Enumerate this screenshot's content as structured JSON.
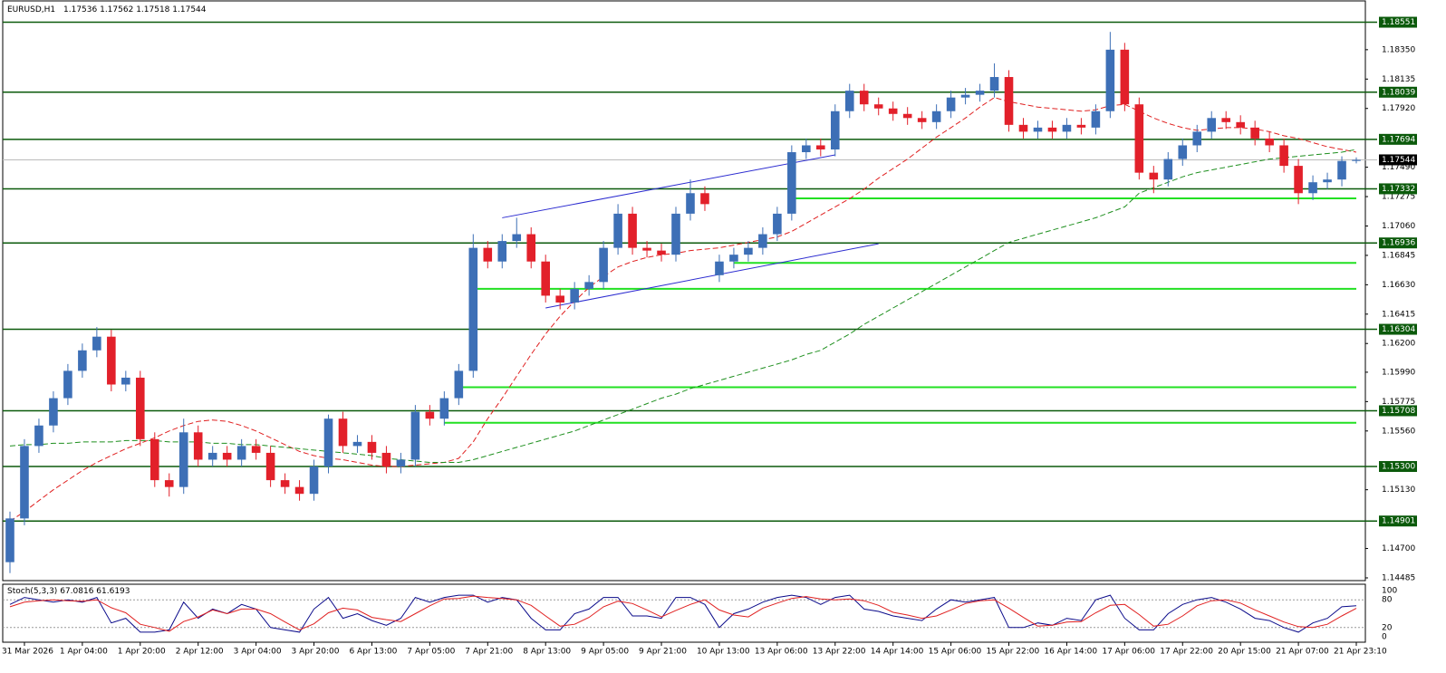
{
  "chart_data": {
    "type": "candlestick",
    "title": "EURUSD,H1",
    "up_color": "#3d6fb6",
    "down_color": "#e2202a",
    "categories": [
      null,
      "31 Mar 2026",
      null,
      null,
      null,
      "1 Apr 04:00",
      null,
      null,
      null,
      "1 Apr 20:00",
      null,
      null,
      null,
      "2 Apr 12:00",
      null,
      null,
      null,
      "3 Apr 04:00",
      null,
      null,
      null,
      "3 Apr 20:00",
      null,
      null,
      null,
      "6 Apr 13:00",
      null,
      null,
      null,
      "7 Apr 05:00",
      null,
      null,
      null,
      "7 Apr 21:00",
      null,
      null,
      null,
      "8 Apr 13:00",
      null,
      null,
      null,
      "9 Apr 05:00",
      null,
      null,
      null,
      "9 Apr 21:00",
      null,
      null,
      null,
      "10 Apr 13:00",
      null,
      null,
      null,
      "13 Apr 06:00",
      null,
      null,
      null,
      "13 Apr 22:00",
      null,
      null,
      null,
      "14 Apr 14:00",
      null,
      null,
      null,
      "15 Apr 06:00",
      null,
      null,
      null,
      "15 Apr 22:00",
      null,
      null,
      null,
      "16 Apr 14:00",
      null,
      null,
      null,
      "17 Apr 06:00",
      null,
      null,
      null,
      "17 Apr 22:00",
      null,
      null,
      null,
      "20 Apr 15:00",
      null,
      null,
      null,
      "21 Apr 07:00",
      null,
      null,
      null,
      "21 Apr 23:10"
    ],
    "candles": [
      [
        1.146,
        1.1497,
        1.1452,
        1.1492
      ],
      [
        1.1492,
        1.155,
        1.1487,
        1.1545
      ],
      [
        1.1545,
        1.1565,
        1.154,
        1.156
      ],
      [
        1.156,
        1.1585,
        1.1555,
        1.158
      ],
      [
        1.158,
        1.1605,
        1.1575,
        1.16
      ],
      [
        1.16,
        1.162,
        1.1595,
        1.1615
      ],
      [
        1.1615,
        1.1632,
        1.161,
        1.1625
      ],
      [
        1.1625,
        1.163,
        1.1585,
        1.159
      ],
      [
        1.159,
        1.16,
        1.1585,
        1.1595
      ],
      [
        1.1595,
        1.16,
        1.1545,
        1.155
      ],
      [
        1.155,
        1.1555,
        1.1515,
        1.152
      ],
      [
        1.152,
        1.1525,
        1.1508,
        1.1515
      ],
      [
        1.1515,
        1.1565,
        1.151,
        1.1555
      ],
      [
        1.1555,
        1.156,
        1.153,
        1.1535
      ],
      [
        1.1535,
        1.1545,
        1.153,
        1.154
      ],
      [
        1.154,
        1.1545,
        1.153,
        1.1535
      ],
      [
        1.1535,
        1.155,
        1.153,
        1.1545
      ],
      [
        1.1545,
        1.155,
        1.1535,
        1.154
      ],
      [
        1.154,
        1.1545,
        1.1515,
        1.152
      ],
      [
        1.152,
        1.1525,
        1.151,
        1.1515
      ],
      [
        1.1515,
        1.152,
        1.1505,
        1.151
      ],
      [
        1.151,
        1.1535,
        1.1505,
        1.153
      ],
      [
        1.153,
        1.1568,
        1.1525,
        1.1565
      ],
      [
        1.1565,
        1.157,
        1.154,
        1.1545
      ],
      [
        1.1545,
        1.1553,
        1.154,
        1.1548
      ],
      [
        1.1548,
        1.1553,
        1.1535,
        1.154
      ],
      [
        1.154,
        1.1545,
        1.1525,
        1.153
      ],
      [
        1.153,
        1.154,
        1.1525,
        1.1535
      ],
      [
        1.1535,
        1.1575,
        1.153,
        1.157
      ],
      [
        1.157,
        1.1575,
        1.156,
        1.1565
      ],
      [
        1.1565,
        1.1585,
        1.156,
        1.158
      ],
      [
        1.158,
        1.1605,
        1.1575,
        1.16
      ],
      [
        1.16,
        1.17,
        1.1595,
        1.169
      ],
      [
        1.169,
        1.1695,
        1.1675,
        1.168
      ],
      [
        1.168,
        1.17,
        1.1675,
        1.1695
      ],
      [
        1.1695,
        1.1712,
        1.169,
        1.17
      ],
      [
        1.17,
        1.1705,
        1.1675,
        1.168
      ],
      [
        1.168,
        1.1685,
        1.165,
        1.1655
      ],
      [
        1.1655,
        1.166,
        1.1645,
        1.165
      ],
      [
        1.165,
        1.1665,
        1.1645,
        1.166
      ],
      [
        1.166,
        1.167,
        1.1655,
        1.1665
      ],
      [
        1.1665,
        1.1695,
        1.166,
        1.169
      ],
      [
        1.169,
        1.1722,
        1.1685,
        1.1715
      ],
      [
        1.1715,
        1.172,
        1.1685,
        1.169
      ],
      [
        1.169,
        1.1695,
        1.1683,
        1.1688
      ],
      [
        1.1688,
        1.1693,
        1.168,
        1.1685
      ],
      [
        1.1685,
        1.172,
        1.168,
        1.1715
      ],
      [
        1.1715,
        1.174,
        1.171,
        1.173
      ],
      [
        1.173,
        1.1735,
        1.1717,
        1.1722
      ],
      [
        1.167,
        1.1685,
        1.1665,
        1.168
      ],
      [
        1.168,
        1.169,
        1.1675,
        1.1685
      ],
      [
        1.1685,
        1.1695,
        1.168,
        1.169
      ],
      [
        1.169,
        1.1705,
        1.1685,
        1.17
      ],
      [
        1.17,
        1.172,
        1.1695,
        1.1715
      ],
      [
        1.1715,
        1.1765,
        1.171,
        1.176
      ],
      [
        1.176,
        1.177,
        1.1755,
        1.1765
      ],
      [
        1.1765,
        1.177,
        1.1757,
        1.1762
      ],
      [
        1.1762,
        1.1795,
        1.1757,
        1.179
      ],
      [
        1.179,
        1.181,
        1.1785,
        1.1805
      ],
      [
        1.1805,
        1.181,
        1.179,
        1.1795
      ],
      [
        1.1795,
        1.18,
        1.1787,
        1.1792
      ],
      [
        1.1792,
        1.1797,
        1.1783,
        1.1788
      ],
      [
        1.1788,
        1.1793,
        1.178,
        1.1785
      ],
      [
        1.1785,
        1.179,
        1.1777,
        1.1782
      ],
      [
        1.1782,
        1.1795,
        1.1777,
        1.179
      ],
      [
        1.179,
        1.1805,
        1.1785,
        1.18
      ],
      [
        1.18,
        1.1807,
        1.1795,
        1.1802
      ],
      [
        1.1802,
        1.181,
        1.1797,
        1.1805
      ],
      [
        1.1805,
        1.1825,
        1.18,
        1.1815
      ],
      [
        1.1815,
        1.182,
        1.1775,
        1.178
      ],
      [
        1.178,
        1.1785,
        1.177,
        1.1775
      ],
      [
        1.1775,
        1.1783,
        1.177,
        1.1778
      ],
      [
        1.1778,
        1.1783,
        1.177,
        1.1775
      ],
      [
        1.1775,
        1.1785,
        1.177,
        1.178
      ],
      [
        1.178,
        1.1785,
        1.1773,
        1.1778
      ],
      [
        1.1778,
        1.1795,
        1.1773,
        1.179
      ],
      [
        1.179,
        1.1848,
        1.1785,
        1.1835
      ],
      [
        1.1835,
        1.184,
        1.179,
        1.1795
      ],
      [
        1.1795,
        1.18,
        1.174,
        1.1745
      ],
      [
        1.1745,
        1.175,
        1.173,
        1.174
      ],
      [
        1.174,
        1.176,
        1.1735,
        1.1755
      ],
      [
        1.1755,
        1.177,
        1.175,
        1.1765
      ],
      [
        1.1765,
        1.178,
        1.176,
        1.1775
      ],
      [
        1.1775,
        1.179,
        1.177,
        1.1785
      ],
      [
        1.1785,
        1.179,
        1.1777,
        1.1782
      ],
      [
        1.1782,
        1.1787,
        1.1773,
        1.1778
      ],
      [
        1.1778,
        1.1783,
        1.1765,
        1.177
      ],
      [
        1.177,
        1.1775,
        1.176,
        1.1765
      ],
      [
        1.1765,
        1.177,
        1.1745,
        1.175
      ],
      [
        1.175,
        1.1755,
        1.1722,
        1.173
      ],
      [
        1.173,
        1.1743,
        1.1725,
        1.1738
      ],
      [
        1.1738,
        1.1745,
        1.1733,
        1.174
      ],
      [
        1.174,
        1.1757,
        1.1735,
        1.17536
      ],
      [
        1.17536,
        1.17562,
        1.17518,
        1.17544
      ]
    ],
    "series": [
      {
        "color": "#e02020",
        "values": [
          1.149,
          1.1497,
          1.1505,
          1.1513,
          1.152,
          1.1527,
          1.1533,
          1.1538,
          1.1543,
          1.1547,
          1.1551,
          1.1556,
          1.156,
          1.1563,
          1.1564,
          1.1563,
          1.156,
          1.1556,
          1.1551,
          1.1546,
          1.1541,
          1.1538,
          1.1536,
          1.1535,
          1.1533,
          1.1531,
          1.153,
          1.153,
          1.1531,
          1.1532,
          1.1533,
          1.1536,
          1.1548,
          1.1565,
          1.158,
          1.1596,
          1.1612,
          1.1627,
          1.164,
          1.1651,
          1.1661,
          1.1669,
          1.1676,
          1.168,
          1.1683,
          1.1685,
          1.1686,
          1.1688,
          1.1689,
          1.169,
          1.1692,
          1.1694,
          1.1696,
          1.1698,
          1.1702,
          1.1708,
          1.1714,
          1.172,
          1.1726,
          1.1733,
          1.1741,
          1.1748,
          1.1755,
          1.1763,
          1.1771,
          1.1778,
          1.1785,
          1.1793,
          1.18,
          1.1797,
          1.1795,
          1.1793,
          1.1792,
          1.1791,
          1.179,
          1.1791,
          1.1794,
          1.1795,
          1.179,
          1.1785,
          1.1781,
          1.1778,
          1.1776,
          1.1777,
          1.1778,
          1.1778,
          1.1777,
          1.1775,
          1.1772,
          1.177,
          1.1767,
          1.1764,
          1.1762,
          1.176
        ]
      },
      {
        "color": "#1e8f1e",
        "values": [
          1.1545,
          1.1546,
          1.1546,
          1.1547,
          1.1547,
          1.1548,
          1.1548,
          1.1548,
          1.1549,
          1.1549,
          1.1549,
          1.1548,
          1.1548,
          1.1548,
          1.1547,
          1.1547,
          1.1546,
          1.1546,
          1.1545,
          1.1544,
          1.1543,
          1.1542,
          1.1541,
          1.154,
          1.1539,
          1.1538,
          1.1536,
          1.1535,
          1.1534,
          1.1533,
          1.1533,
          1.1533,
          1.1535,
          1.1538,
          1.1541,
          1.1544,
          1.1547,
          1.155,
          1.1553,
          1.1556,
          1.156,
          1.1564,
          1.1568,
          1.1572,
          1.1576,
          1.158,
          1.1583,
          1.1587,
          1.159,
          1.1593,
          1.1596,
          1.1599,
          1.1602,
          1.1605,
          1.1608,
          1.1612,
          1.1615,
          1.1621,
          1.1627,
          1.1634,
          1.164,
          1.1646,
          1.1652,
          1.1658,
          1.1664,
          1.167,
          1.1676,
          1.1682,
          1.1688,
          1.1694,
          1.1697,
          1.17,
          1.1703,
          1.1706,
          1.1709,
          1.1712,
          1.1716,
          1.172,
          1.173,
          1.1734,
          1.1738,
          1.1742,
          1.1745,
          1.1747,
          1.1749,
          1.1751,
          1.1753,
          1.1755,
          1.1756,
          1.1757,
          1.1758,
          1.1759,
          1.176,
          1.1762
        ]
      }
    ],
    "ylim": [
      1.14465,
      1.18707
    ],
    "yticks": [
      {
        "value": 1.1835,
        "label": "1.18350"
      },
      1.18135,
      {
        "value": 1.1792,
        "label": "1.17920"
      },
      {
        "value": 1.1749,
        "label": "1.17490"
      },
      1.17275,
      {
        "value": 1.1706,
        "label": "1.17060"
      },
      1.16845,
      {
        "value": 1.1663,
        "label": "1.16630"
      },
      1.16415,
      {
        "value": 1.162,
        "label": "1.16200"
      },
      {
        "value": 1.1599,
        "label": "1.15990"
      },
      1.15775,
      {
        "value": 1.1556,
        "label": "1.15560"
      },
      {
        "value": 1.1513,
        "label": "1.15130"
      },
      {
        "value": 1.147,
        "label": "1.14700"
      },
      1.14485
    ],
    "levels": [
      1.18551,
      1.18039,
      1.17694,
      1.17332,
      1.16936,
      1.16304,
      1.15708,
      {
        "value": 1.153,
        "label": "1.15300"
      },
      1.14901
    ],
    "level_color": "#0b5a0b",
    "support_lines": [
      {
        "value": 1.17262,
        "from": 54
      },
      {
        "value": 1.1679,
        "from": 50
      },
      {
        "value": 1.166,
        "from": 32
      },
      {
        "value": 1.1588,
        "from": 31
      },
      {
        "value": 1.1562,
        "from": 30
      }
    ],
    "support_color": "#22e022",
    "trendlines": [
      {
        "from": 34,
        "to": 57,
        "values": [
          1.1712,
          1.1758
        ]
      },
      {
        "from": 37,
        "to": 60,
        "values": [
          1.1646,
          1.1693
        ]
      }
    ],
    "trendline_color": "#2c2cd0",
    "stoch": {
      "title": "Stoch(5,3,3)",
      "ylim": [
        0,
        100
      ],
      "yticks": [
        100,
        80,
        20,
        0
      ],
      "series": [
        {
          "color": "#0a0a8a",
          "values": [
            70,
            85,
            80,
            75,
            80,
            75,
            85,
            30,
            40,
            10,
            10,
            15,
            75,
            40,
            60,
            50,
            70,
            60,
            20,
            15,
            10,
            60,
            85,
            40,
            50,
            35,
            25,
            40,
            85,
            75,
            85,
            90,
            90,
            75,
            85,
            80,
            40,
            15,
            15,
            50,
            60,
            85,
            85,
            45,
            45,
            40,
            85,
            85,
            70,
            20,
            50,
            60,
            75,
            85,
            90,
            85,
            70,
            85,
            90,
            60,
            55,
            45,
            40,
            35,
            60,
            80,
            75,
            80,
            85,
            20,
            20,
            30,
            25,
            40,
            35,
            80,
            90,
            40,
            15,
            15,
            50,
            70,
            80,
            85,
            75,
            60,
            40,
            35,
            20,
            10,
            30,
            40,
            65,
            67.0816
          ]
        },
        {
          "color": "#e02020",
          "values": [
            65,
            75,
            78,
            80,
            78,
            77,
            80,
            63,
            52,
            27,
            20,
            12,
            33,
            43,
            58,
            50,
            60,
            60,
            50,
            32,
            15,
            28,
            52,
            62,
            58,
            42,
            37,
            33,
            50,
            67,
            82,
            83,
            88,
            85,
            83,
            80,
            68,
            45,
            23,
            27,
            42,
            65,
            77,
            72,
            58,
            43,
            57,
            70,
            80,
            58,
            47,
            43,
            62,
            73,
            83,
            87,
            82,
            80,
            82,
            78,
            68,
            53,
            47,
            40,
            45,
            58,
            72,
            78,
            80,
            62,
            42,
            23,
            25,
            32,
            33,
            52,
            68,
            70,
            48,
            23,
            27,
            45,
            67,
            78,
            80,
            73,
            58,
            45,
            32,
            22,
            20,
            27,
            45,
            61.6193
          ]
        }
      ]
    }
  }
}
